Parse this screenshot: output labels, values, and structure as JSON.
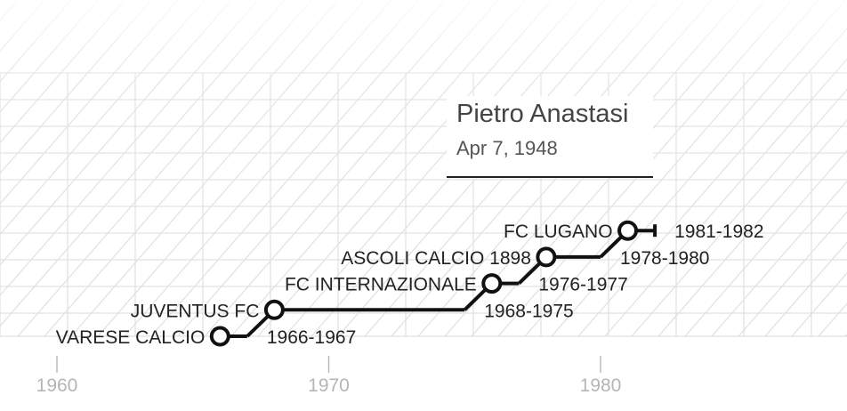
{
  "player": {
    "name": "Pietro Anastasi",
    "birth_date": "Apr 7, 1948"
  },
  "chart_data": {
    "type": "line",
    "title": "",
    "xlabel": "",
    "ylabel": "",
    "xlim": [
      1960,
      1986
    ],
    "x_ticks": [
      "1960",
      "1970",
      "1980"
    ],
    "grid": false,
    "colors": {
      "line": "#111111",
      "axis": "#bbbbbb",
      "tick_text": "#b5b5b5",
      "pattern": "#dcdcdc"
    },
    "series": [
      {
        "stints": [
          {
            "club": "VARESE CALCIO",
            "period": "1966-1967",
            "start": 1966,
            "end": 1967
          },
          {
            "club": "JUVENTUS FC",
            "period": "1968-1975",
            "start": 1968,
            "end": 1975
          },
          {
            "club": "FC INTERNAZIONALE",
            "period": "1976-1977",
            "start": 1976,
            "end": 1977
          },
          {
            "club": "ASCOLI CALCIO 1898",
            "period": "1978-1980",
            "start": 1978,
            "end": 1980
          },
          {
            "club": "FC LUGANO",
            "period": "1981-1982",
            "start": 1981,
            "end": 1982
          }
        ]
      }
    ]
  }
}
